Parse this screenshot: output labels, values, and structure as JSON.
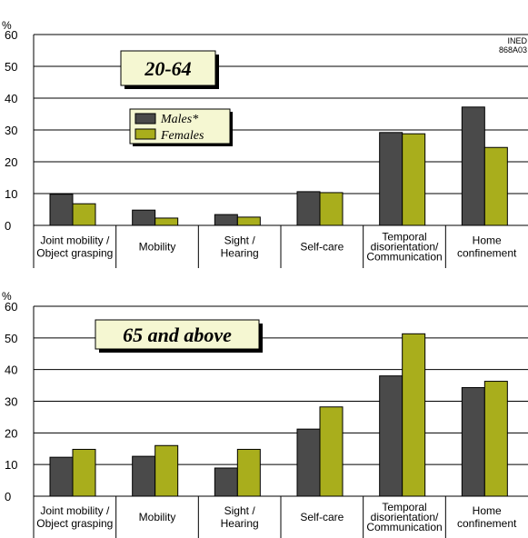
{
  "colors": {
    "males": "#4a4a4a",
    "females": "#a9ae1c",
    "agebox_fill": "#f5f7d2",
    "legend_fill": "#f5f7d2"
  },
  "source_note": {
    "line1": "INED",
    "line2": "868A03"
  },
  "legend": {
    "males": "Males*",
    "females": "Females"
  },
  "chart_data": [
    {
      "type": "bar",
      "title": "20-64",
      "ylabel": "%",
      "ylim": [
        0,
        60
      ],
      "yticks": [
        "0",
        "10",
        "20",
        "30",
        "40",
        "50",
        "60"
      ],
      "categories": [
        [
          "Joint mobility /",
          "Object grasping"
        ],
        [
          "Mobility"
        ],
        [
          "Sight /",
          "Hearing"
        ],
        [
          "Self-care"
        ],
        [
          "Temporal",
          "disorientation/",
          "Communication"
        ],
        [
          "Home",
          "confinement"
        ]
      ],
      "series": [
        {
          "name": "Males*",
          "values": [
            9.8,
            4.8,
            3.4,
            10.6,
            29.2,
            37.2
          ]
        },
        {
          "name": "Females",
          "values": [
            6.8,
            2.3,
            2.6,
            10.3,
            28.8,
            24.5
          ]
        }
      ]
    },
    {
      "type": "bar",
      "title": "65 and above",
      "ylabel": "%",
      "ylim": [
        0,
        60
      ],
      "yticks": [
        "0",
        "10",
        "20",
        "30",
        "40",
        "50",
        "60"
      ],
      "categories": [
        [
          "Joint mobility /",
          "Object grasping"
        ],
        [
          "Mobility"
        ],
        [
          "Sight /",
          "Hearing"
        ],
        [
          "Self-care"
        ],
        [
          "Temporal",
          "disorientation/",
          "Communication"
        ],
        [
          "Home",
          "confinement"
        ]
      ],
      "series": [
        {
          "name": "Males*",
          "values": [
            12.3,
            12.6,
            8.9,
            21.2,
            38.0,
            34.3
          ]
        },
        {
          "name": "Females",
          "values": [
            14.8,
            16.0,
            14.8,
            28.2,
            51.3,
            36.3
          ]
        }
      ]
    }
  ]
}
